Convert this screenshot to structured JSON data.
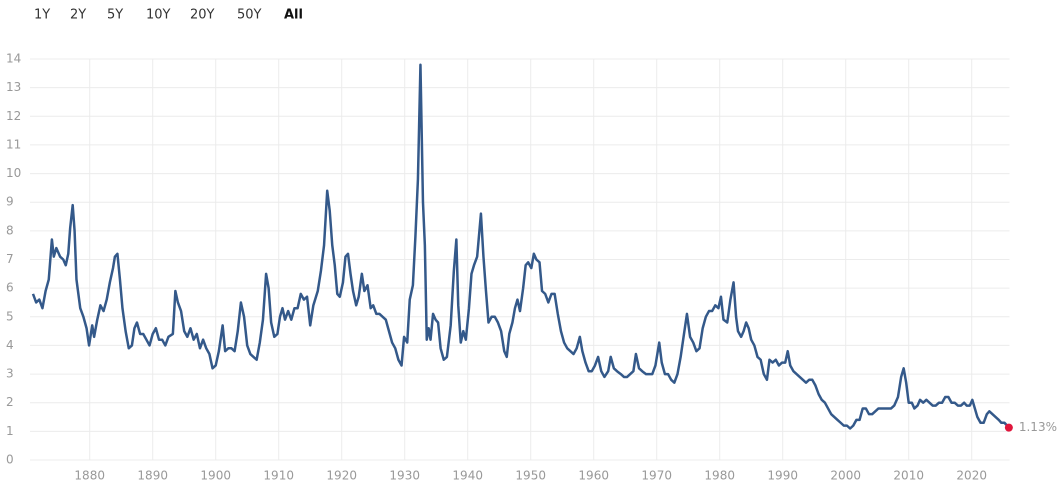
{
  "controls": {
    "ranges": [
      "1Y",
      "2Y",
      "5Y",
      "10Y",
      "20Y",
      "50Y",
      "All"
    ],
    "selected": "All"
  },
  "chart_data": {
    "type": "line",
    "color": "#34598a",
    "end_label": "1.13%",
    "end_marker_color": "#e0163c",
    "grid": true,
    "xlim": [
      1871,
      2026
    ],
    "ylim": [
      0,
      14
    ],
    "xticks": [
      1880,
      1890,
      1900,
      1910,
      1920,
      1930,
      1940,
      1950,
      1960,
      1970,
      1980,
      1990,
      2000,
      2010,
      2020
    ],
    "yticks": [
      0,
      1,
      2,
      3,
      4,
      5,
      6,
      7,
      8,
      9,
      10,
      11,
      12,
      13,
      14
    ],
    "x": [
      1871,
      1871.5,
      1872,
      1872.5,
      1873,
      1873.5,
      1874,
      1874.3,
      1874.7,
      1875.3,
      1875.8,
      1876.2,
      1876.6,
      1876.9,
      1877.3,
      1877.6,
      1877.9,
      1878.5,
      1879,
      1879.5,
      1879.9,
      1880.4,
      1880.7,
      1881.2,
      1881.7,
      1882.2,
      1882.7,
      1883.2,
      1883.7,
      1884,
      1884.4,
      1884.8,
      1885.2,
      1885.7,
      1886.2,
      1886.7,
      1887.1,
      1887.5,
      1888,
      1888.5,
      1889,
      1889.5,
      1890,
      1890.5,
      1891,
      1891.5,
      1892,
      1892.5,
      1893.2,
      1893.6,
      1894,
      1894.5,
      1895,
      1895.5,
      1896,
      1896.5,
      1897,
      1897.5,
      1898,
      1898.5,
      1899,
      1899.5,
      1900,
      1900.5,
      1901.1,
      1901.5,
      1902,
      1902.5,
      1903,
      1903.5,
      1904,
      1904.5,
      1905,
      1905.5,
      1906,
      1906.5,
      1907,
      1907.5,
      1908,
      1908.4,
      1908.8,
      1909.3,
      1909.8,
      1910.2,
      1910.6,
      1911,
      1911.5,
      1912,
      1912.5,
      1913,
      1913.5,
      1914,
      1914.5,
      1915,
      1915.5,
      1916.2,
      1916.7,
      1917.2,
      1917.7,
      1918.1,
      1918.5,
      1918.9,
      1919.3,
      1919.7,
      1920.2,
      1920.6,
      1921,
      1921.4,
      1921.8,
      1922.3,
      1922.7,
      1923.2,
      1923.6,
      1924.1,
      1924.6,
      1925,
      1925.5,
      1926,
      1926.5,
      1927,
      1927.5,
      1928,
      1928.5,
      1929,
      1929.5,
      1929.9,
      1930.4,
      1930.8,
      1931.3,
      1931.7,
      1932.1,
      1932.5,
      1932.9,
      1933.2,
      1933.5,
      1933.8,
      1934.1,
      1934.5,
      1934.9,
      1935.3,
      1935.7,
      1936.2,
      1936.7,
      1937.3,
      1937.8,
      1938.2,
      1938.5,
      1938.9,
      1939.3,
      1939.7,
      1940.2,
      1940.6,
      1941,
      1941.5,
      1942.1,
      1942.5,
      1942.9,
      1943.3,
      1943.8,
      1944.3,
      1944.8,
      1945.3,
      1945.8,
      1946.2,
      1946.6,
      1947.1,
      1947.5,
      1947.9,
      1948.3,
      1948.8,
      1949.2,
      1949.6,
      1950.1,
      1950.5,
      1950.9,
      1951.4,
      1951.8,
      1952.3,
      1952.8,
      1953.3,
      1953.8,
      1954.3,
      1954.8,
      1955.3,
      1955.8,
      1956.3,
      1956.8,
      1957.3,
      1957.8,
      1958.2,
      1958.7,
      1959.2,
      1959.7,
      1960.2,
      1960.7,
      1961.2,
      1961.7,
      1962.3,
      1962.7,
      1963.2,
      1963.7,
      1964.3,
      1964.8,
      1965.3,
      1965.8,
      1966.3,
      1966.7,
      1967.2,
      1967.7,
      1968.3,
      1968.8,
      1969.3,
      1969.8,
      1970.4,
      1970.8,
      1971.3,
      1971.8,
      1972.3,
      1972.8,
      1973.3,
      1973.8,
      1974.4,
      1974.8,
      1975.3,
      1975.8,
      1976.3,
      1976.8,
      1977.3,
      1977.8,
      1978.3,
      1978.8,
      1979.3,
      1979.8,
      1980.2,
      1980.6,
      1981.2,
      1981.7,
      1982.2,
      1982.6,
      1982.9,
      1983.4,
      1983.8,
      1984.2,
      1984.6,
      1985,
      1985.5,
      1986,
      1986.5,
      1987,
      1987.5,
      1987.9,
      1988.4,
      1988.9,
      1989.4,
      1989.9,
      1990.4,
      1990.8,
      1991.2,
      1991.7,
      1992.2,
      1992.7,
      1993.2,
      1993.7,
      1994.2,
      1994.7,
      1995.2,
      1995.7,
      1996.2,
      1996.7,
      1997.2,
      1997.7,
      1998.2,
      1998.7,
      1999.2,
      1999.7,
      2000.2,
      2000.7,
      2001.2,
      2001.7,
      2002.2,
      2002.7,
      2003.2,
      2003.7,
      2004.2,
      2004.7,
      2005.2,
      2005.7,
      2006.2,
      2006.7,
      2007.2,
      2007.7,
      2008.3,
      2008.8,
      2009.2,
      2009.6,
      2010,
      2010.5,
      2010.9,
      2011.4,
      2011.8,
      2012.3,
      2012.8,
      2013.3,
      2013.8,
      2014.3,
      2014.8,
      2015.3,
      2015.8,
      2016.3,
      2016.8,
      2017.3,
      2017.8,
      2018.3,
      2018.8,
      2019.2,
      2019.7,
      2020.1,
      2020.5,
      2020.9,
      2021.4,
      2021.9,
      2022.4,
      2022.8,
      2023.3,
      2023.8,
      2024.3,
      2024.7,
      2025.2,
      2025.9
    ],
    "values": [
      5.8,
      5.5,
      5.6,
      5.3,
      5.9,
      6.3,
      7.7,
      7.1,
      7.4,
      7.1,
      7.0,
      6.8,
      7.2,
      8.1,
      8.9,
      8.0,
      6.3,
      5.3,
      5.0,
      4.6,
      4.0,
      4.7,
      4.3,
      4.9,
      5.4,
      5.2,
      5.6,
      6.2,
      6.7,
      7.1,
      7.2,
      6.3,
      5.3,
      4.5,
      3.9,
      4.0,
      4.6,
      4.8,
      4.4,
      4.4,
      4.2,
      4.0,
      4.4,
      4.6,
      4.2,
      4.2,
      4.0,
      4.3,
      4.4,
      5.9,
      5.5,
      5.2,
      4.5,
      4.3,
      4.6,
      4.2,
      4.4,
      3.9,
      4.2,
      3.9,
      3.7,
      3.2,
      3.3,
      3.8,
      4.7,
      3.8,
      3.9,
      3.9,
      3.8,
      4.5,
      5.5,
      5.0,
      4.0,
      3.7,
      3.6,
      3.5,
      4.1,
      4.9,
      6.5,
      6.0,
      4.8,
      4.3,
      4.4,
      5.0,
      5.3,
      4.9,
      5.2,
      4.9,
      5.3,
      5.3,
      5.8,
      5.6,
      5.7,
      4.7,
      5.4,
      5.9,
      6.6,
      7.5,
      9.4,
      8.7,
      7.5,
      6.8,
      5.8,
      5.7,
      6.2,
      7.1,
      7.2,
      6.5,
      5.9,
      5.4,
      5.7,
      6.5,
      5.9,
      6.1,
      5.3,
      5.4,
      5.1,
      5.1,
      5.0,
      4.9,
      4.5,
      4.1,
      3.9,
      3.5,
      3.3,
      4.3,
      4.1,
      5.6,
      6.1,
      7.8,
      9.8,
      13.8,
      9.0,
      7.5,
      4.2,
      4.6,
      4.2,
      5.1,
      4.9,
      4.8,
      3.9,
      3.5,
      3.6,
      4.7,
      6.6,
      7.7,
      5.4,
      4.1,
      4.5,
      4.2,
      5.3,
      6.5,
      6.8,
      7.1,
      8.6,
      7.1,
      5.9,
      4.8,
      5.0,
      5.0,
      4.8,
      4.5,
      3.8,
      3.6,
      4.4,
      4.8,
      5.3,
      5.6,
      5.2,
      6.0,
      6.8,
      6.9,
      6.7,
      7.2,
      7.0,
      6.9,
      5.9,
      5.8,
      5.5,
      5.8,
      5.8,
      5.1,
      4.5,
      4.1,
      3.9,
      3.8,
      3.7,
      3.9,
      4.3,
      3.8,
      3.4,
      3.1,
      3.1,
      3.3,
      3.6,
      3.1,
      2.9,
      3.1,
      3.6,
      3.2,
      3.1,
      3.0,
      2.9,
      2.9,
      3.0,
      3.1,
      3.7,
      3.2,
      3.1,
      3.0,
      3.0,
      3.0,
      3.3,
      4.1,
      3.4,
      3.0,
      3.0,
      2.8,
      2.7,
      3.0,
      3.6,
      4.5,
      5.1,
      4.3,
      4.1,
      3.8,
      3.9,
      4.6,
      5.0,
      5.2,
      5.2,
      5.4,
      5.3,
      5.7,
      4.9,
      4.8,
      5.6,
      6.2,
      5.0,
      4.5,
      4.3,
      4.5,
      4.8,
      4.6,
      4.2,
      4.0,
      3.6,
      3.5,
      3.0,
      2.8,
      3.5,
      3.4,
      3.5,
      3.3,
      3.4,
      3.4,
      3.8,
      3.3,
      3.1,
      3.0,
      2.9,
      2.8,
      2.7,
      2.8,
      2.8,
      2.6,
      2.3,
      2.1,
      2.0,
      1.8,
      1.6,
      1.5,
      1.4,
      1.3,
      1.2,
      1.2,
      1.1,
      1.2,
      1.4,
      1.4,
      1.8,
      1.8,
      1.6,
      1.6,
      1.7,
      1.8,
      1.8,
      1.8,
      1.8,
      1.8,
      1.9,
      2.2,
      2.9,
      3.2,
      2.7,
      2.0,
      2.0,
      1.8,
      1.9,
      2.1,
      2.0,
      2.1,
      2.0,
      1.9,
      1.9,
      2.0,
      2.0,
      2.2,
      2.2,
      2.0,
      2.0,
      1.9,
      1.9,
      2.0,
      1.9,
      1.9,
      2.1,
      1.8,
      1.5,
      1.3,
      1.3,
      1.6,
      1.7,
      1.6,
      1.5,
      1.4,
      1.3,
      1.3,
      1.13
    ]
  }
}
